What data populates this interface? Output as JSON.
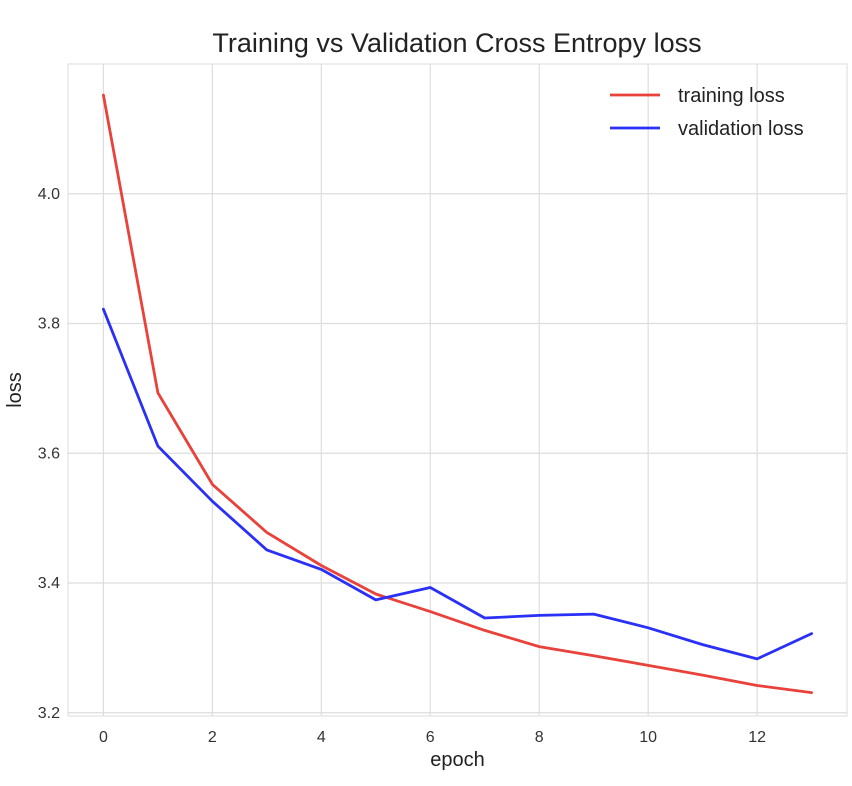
{
  "chart_data": {
    "type": "line",
    "title": "Training vs Validation Cross Entropy loss",
    "xlabel": "epoch",
    "ylabel": "loss",
    "x": [
      0,
      1,
      2,
      3,
      4,
      5,
      6,
      7,
      8,
      9,
      10,
      11,
      12,
      13
    ],
    "xlim": [
      -0.65,
      13.65
    ],
    "ylim": [
      3.195,
      4.2
    ],
    "xticks": [
      0,
      2,
      4,
      6,
      8,
      10,
      12
    ],
    "xtick_labels": [
      "0",
      "2",
      "4",
      "6",
      "8",
      "10",
      "12"
    ],
    "yticks": [
      3.2,
      3.4,
      3.6,
      3.8,
      4.0
    ],
    "ytick_labels": [
      "3.2",
      "3.4",
      "3.6",
      "3.8",
      "4.0"
    ],
    "grid": true,
    "legend_position": "top-right",
    "series": [
      {
        "name": "training loss",
        "color": "#e8423b",
        "values": [
          4.152,
          3.693,
          3.552,
          3.478,
          3.427,
          3.383,
          3.356,
          3.327,
          3.302,
          3.288,
          3.273,
          3.258,
          3.242,
          3.231
        ]
      },
      {
        "name": "validation loss",
        "color": "#2a30f5",
        "values": [
          3.822,
          3.611,
          3.526,
          3.451,
          3.421,
          3.374,
          3.393,
          3.346,
          3.35,
          3.352,
          3.331,
          3.305,
          3.283,
          3.322
        ]
      }
    ]
  }
}
